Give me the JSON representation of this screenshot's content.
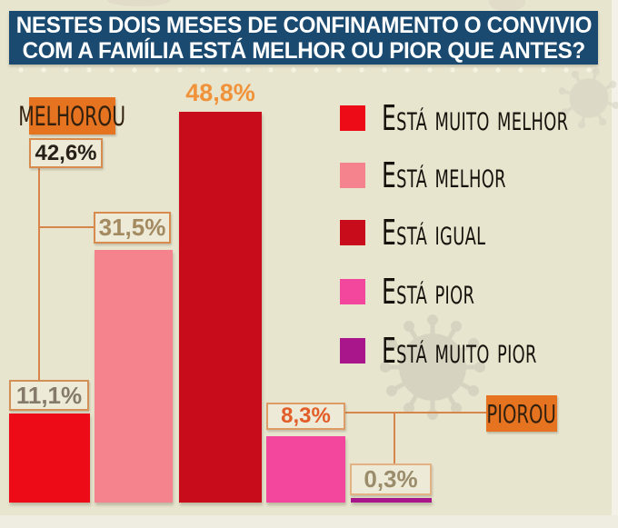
{
  "title": {
    "line1": "NESTES DOIS MESES DE CONFINAMENTO O CONVIVIO",
    "line2": "COM A FAMÍLIA ESTÁ MELHOR OU PIOR QUE ANTES?"
  },
  "chart_data": {
    "type": "bar",
    "title": "Nestes dois meses de confinamento o convivio com a família está melhor ou pior que antes?",
    "categories": [
      "Está muito melhor",
      "Está melhor",
      "Está igual",
      "Está pior",
      "Está muito pior"
    ],
    "values": [
      11.1,
      31.5,
      48.8,
      8.3,
      0.3
    ],
    "value_labels": [
      "11,1%",
      "31,5%",
      "48,8%",
      "8,3%",
      "0,3%"
    ],
    "colors": [
      "#ee0b18",
      "#f4838e",
      "#c90c1c",
      "#f2479c",
      "#a9158a"
    ],
    "ylim": [
      0,
      55
    ],
    "grid": false,
    "legend_position": "right",
    "legend": [
      {
        "label": "Está muito melhor",
        "color": "#ee0b18"
      },
      {
        "label": "Está melhor",
        "color": "#f4838e"
      },
      {
        "label": "Está igual",
        "color": "#c90c1c"
      },
      {
        "label": "Está pior",
        "color": "#f2479c"
      },
      {
        "label": "Está muito pior",
        "color": "#a9158a"
      }
    ],
    "groups": [
      {
        "label": "MELHOROU",
        "value": 42.6,
        "value_label": "42,6%",
        "members": [
          "Está muito melhor",
          "Está melhor"
        ]
      },
      {
        "label": "PIOROU",
        "members": [
          "Está pior",
          "Está muito pior"
        ]
      }
    ]
  },
  "colors": {
    "background": "#e8e5cf",
    "title_bar": "#1a4a70",
    "accent_orange": "#e5731f",
    "connector_line": "#d7854a"
  }
}
